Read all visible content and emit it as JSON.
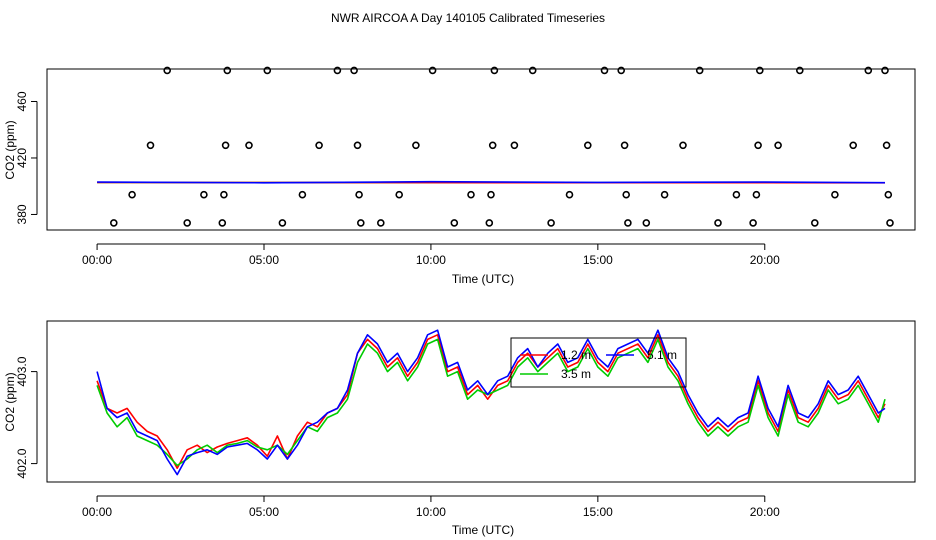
{
  "figure_title": "NWR AIRCOA A  Day 140105  Calibrated Timeseries",
  "chart_data": [
    {
      "type": "scatter",
      "name": "top-panel",
      "xlabel": "Time (UTC)",
      "ylabel": "CO2 (ppm)",
      "xlim": [
        -1.5,
        24.5
      ],
      "ylim": [
        369,
        483
      ],
      "xticks": [
        0,
        5,
        10,
        15,
        20
      ],
      "xtick_labels": [
        "00:00",
        "05:00",
        "10:00",
        "15:00",
        "20:00"
      ],
      "yticks": [
        380,
        420,
        460
      ],
      "ytick_labels": [
        "380",
        "420",
        "460"
      ],
      "grid": false,
      "reference_points": {
        "x": [
          0.5,
          1.05,
          1.6,
          2.1,
          2.7,
          3.2,
          3.75,
          3.8,
          3.85,
          3.9,
          4.55,
          5.1,
          5.55,
          6.15,
          6.65,
          7.2,
          7.7,
          7.8,
          7.85,
          7.9,
          8.5,
          9.05,
          9.55,
          10.05,
          10.7,
          11.2,
          11.75,
          11.8,
          11.85,
          11.9,
          12.5,
          13.05,
          13.6,
          14.15,
          14.7,
          15.2,
          15.7,
          15.8,
          15.85,
          15.9,
          16.45,
          17.0,
          17.55,
          18.05,
          18.6,
          19.15,
          19.65,
          19.75,
          19.8,
          19.85,
          20.4,
          21.05,
          21.5,
          22.1,
          22.65,
          23.1,
          23.6,
          23.65,
          23.7,
          23.75
        ],
        "y": [
          374,
          394,
          429,
          482,
          374,
          394,
          374,
          394,
          429,
          482,
          429,
          482,
          374,
          394,
          429,
          482,
          482,
          429,
          394,
          374,
          374,
          394,
          429,
          482,
          374,
          394,
          374,
          394,
          429,
          482,
          429,
          482,
          374,
          394,
          429,
          482,
          482,
          429,
          394,
          374,
          374,
          394,
          429,
          482,
          374,
          394,
          374,
          394,
          429,
          482,
          429,
          482,
          374,
          394,
          429,
          482,
          482,
          429,
          394,
          374
        ]
      },
      "series": [
        {
          "color": "#00cc00",
          "x": [
            0,
            23.6
          ],
          "y": [
            402.6,
            402.5
          ]
        },
        {
          "color": "#ff0000",
          "x": [
            0,
            23.6
          ],
          "y": [
            402.6,
            402.4
          ]
        },
        {
          "color": "#0000ff",
          "x": [
            0,
            5.0,
            10.0,
            15.0,
            20.0,
            23.6
          ],
          "y": [
            402.9,
            402.4,
            403.2,
            402.7,
            402.9,
            402.5
          ]
        }
      ]
    },
    {
      "type": "line",
      "name": "bottom-panel",
      "xlabel": "Time (UTC)",
      "ylabel": "CO2 (ppm)",
      "xlim": [
        -1.5,
        24.5
      ],
      "ylim": [
        401.8,
        403.55
      ],
      "xticks": [
        0,
        5,
        10,
        15,
        20
      ],
      "xtick_labels": [
        "00:00",
        "05:00",
        "10:00",
        "15:00",
        "20:00"
      ],
      "yticks": [
        402.0,
        403.0
      ],
      "ytick_labels": [
        "402.0",
        "403.0"
      ],
      "grid": false,
      "legend": {
        "placement": "top-center",
        "entries": [
          {
            "label": "1.2 m",
            "color": "#ff0000"
          },
          {
            "label": "3.5 m",
            "color": "#00cc00"
          },
          {
            "label": "5.1 m",
            "color": "#0000ff"
          }
        ]
      },
      "series": [
        {
          "name": "1.2 m",
          "color": "#ff0000",
          "x": [
            0,
            0.3,
            0.6,
            0.9,
            1.2,
            1.5,
            1.8,
            2.1,
            2.4,
            2.7,
            3.0,
            3.3,
            3.6,
            3.9,
            4.2,
            4.5,
            4.8,
            5.1,
            5.4,
            5.7,
            6.0,
            6.3,
            6.6,
            6.9,
            7.2,
            7.5,
            7.8,
            8.1,
            8.4,
            8.7,
            9.0,
            9.3,
            9.6,
            9.9,
            10.2,
            10.5,
            10.8,
            11.1,
            11.4,
            11.7,
            12.0,
            12.3,
            12.6,
            12.9,
            13.2,
            13.5,
            13.8,
            14.1,
            14.4,
            14.7,
            15.0,
            15.3,
            15.6,
            15.9,
            16.2,
            16.5,
            16.8,
            17.1,
            17.4,
            17.7,
            18.0,
            18.3,
            18.6,
            18.9,
            19.2,
            19.5,
            19.8,
            20.1,
            20.4,
            20.7,
            21.0,
            21.3,
            21.6,
            21.9,
            22.2,
            22.5,
            22.8,
            23.1,
            23.4,
            23.6
          ],
          "y": [
            402.9,
            402.6,
            402.55,
            402.6,
            402.45,
            402.35,
            402.3,
            402.15,
            401.95,
            402.15,
            402.2,
            402.12,
            402.18,
            402.22,
            402.25,
            402.28,
            402.2,
            402.08,
            402.3,
            402.05,
            402.3,
            402.45,
            402.4,
            402.55,
            402.6,
            402.75,
            403.2,
            403.35,
            403.25,
            403.05,
            403.15,
            402.95,
            403.1,
            403.35,
            403.4,
            403.0,
            403.05,
            402.75,
            402.85,
            402.7,
            402.85,
            402.9,
            403.1,
            403.2,
            403.05,
            403.15,
            403.25,
            403.05,
            403.1,
            403.3,
            403.1,
            403.0,
            403.2,
            403.25,
            403.3,
            403.15,
            403.4,
            403.1,
            402.95,
            402.7,
            402.5,
            402.35,
            402.45,
            402.35,
            402.45,
            402.5,
            402.9,
            402.55,
            402.35,
            402.8,
            402.5,
            402.45,
            402.6,
            402.85,
            402.7,
            402.75,
            402.9,
            402.7,
            402.5,
            402.65
          ]
        },
        {
          "name": "3.5 m",
          "color": "#00cc00",
          "x": [
            0,
            0.3,
            0.6,
            0.9,
            1.2,
            1.5,
            1.8,
            2.1,
            2.4,
            2.7,
            3.0,
            3.3,
            3.6,
            3.9,
            4.2,
            4.5,
            4.8,
            5.1,
            5.4,
            5.7,
            6.0,
            6.3,
            6.6,
            6.9,
            7.2,
            7.5,
            7.8,
            8.1,
            8.4,
            8.7,
            9.0,
            9.3,
            9.6,
            9.9,
            10.2,
            10.5,
            10.8,
            11.1,
            11.4,
            11.7,
            12.0,
            12.3,
            12.6,
            12.9,
            13.2,
            13.5,
            13.8,
            14.1,
            14.4,
            14.7,
            15.0,
            15.3,
            15.6,
            15.9,
            16.2,
            16.5,
            16.8,
            17.1,
            17.4,
            17.7,
            18.0,
            18.3,
            18.6,
            18.9,
            19.2,
            19.5,
            19.8,
            20.1,
            20.4,
            20.7,
            21.0,
            21.3,
            21.6,
            21.9,
            22.2,
            22.5,
            22.8,
            23.1,
            23.4,
            23.6
          ],
          "y": [
            402.85,
            402.55,
            402.4,
            402.5,
            402.3,
            402.25,
            402.2,
            402.1,
            401.98,
            402.05,
            402.15,
            402.2,
            402.12,
            402.2,
            402.22,
            402.25,
            402.18,
            402.15,
            402.2,
            402.1,
            402.25,
            402.4,
            402.35,
            402.5,
            402.55,
            402.7,
            403.1,
            403.3,
            403.2,
            403.0,
            403.1,
            402.9,
            403.05,
            403.3,
            403.35,
            402.95,
            403.0,
            402.7,
            402.8,
            402.75,
            402.8,
            402.85,
            403.05,
            403.15,
            403.0,
            403.1,
            403.2,
            403.0,
            403.05,
            403.25,
            403.05,
            402.95,
            403.15,
            403.2,
            403.25,
            403.1,
            403.35,
            403.05,
            402.9,
            402.65,
            402.45,
            402.3,
            402.4,
            402.3,
            402.4,
            402.45,
            402.85,
            402.5,
            402.3,
            402.75,
            402.45,
            402.4,
            402.55,
            402.8,
            402.65,
            402.7,
            402.85,
            402.65,
            402.45,
            402.7
          ]
        },
        {
          "name": "5.1 m",
          "color": "#0000ff",
          "x": [
            0,
            0.3,
            0.6,
            0.9,
            1.2,
            1.5,
            1.8,
            2.1,
            2.4,
            2.7,
            3.0,
            3.3,
            3.6,
            3.9,
            4.2,
            4.5,
            4.8,
            5.1,
            5.4,
            5.7,
            6.0,
            6.3,
            6.6,
            6.9,
            7.2,
            7.5,
            7.8,
            8.1,
            8.4,
            8.7,
            9.0,
            9.3,
            9.6,
            9.9,
            10.2,
            10.5,
            10.8,
            11.1,
            11.4,
            11.7,
            12.0,
            12.3,
            12.6,
            12.9,
            13.2,
            13.5,
            13.8,
            14.1,
            14.4,
            14.7,
            15.0,
            15.3,
            15.6,
            15.9,
            16.2,
            16.5,
            16.8,
            17.1,
            17.4,
            17.7,
            18.0,
            18.3,
            18.6,
            18.9,
            19.2,
            19.5,
            19.8,
            20.1,
            20.4,
            20.7,
            21.0,
            21.3,
            21.6,
            21.9,
            22.2,
            22.5,
            22.8,
            23.1,
            23.4,
            23.6
          ],
          "y": [
            403.0,
            402.6,
            402.5,
            402.55,
            402.35,
            402.3,
            402.25,
            402.05,
            401.88,
            402.08,
            402.12,
            402.15,
            402.1,
            402.18,
            402.2,
            402.22,
            402.15,
            402.05,
            402.2,
            402.05,
            402.2,
            402.4,
            402.45,
            402.55,
            402.6,
            402.8,
            403.2,
            403.4,
            403.3,
            403.1,
            403.2,
            403.0,
            403.15,
            403.4,
            403.45,
            403.05,
            403.1,
            402.8,
            402.9,
            402.75,
            402.9,
            402.95,
            403.15,
            403.25,
            403.05,
            403.2,
            403.3,
            403.1,
            403.15,
            403.35,
            403.15,
            403.05,
            403.25,
            403.3,
            403.35,
            403.2,
            403.45,
            403.15,
            403.0,
            402.75,
            402.55,
            402.4,
            402.5,
            402.4,
            402.5,
            402.55,
            402.95,
            402.6,
            402.4,
            402.85,
            402.55,
            402.5,
            402.65,
            402.9,
            402.75,
            402.8,
            402.95,
            402.75,
            402.55,
            402.6
          ]
        }
      ]
    }
  ]
}
